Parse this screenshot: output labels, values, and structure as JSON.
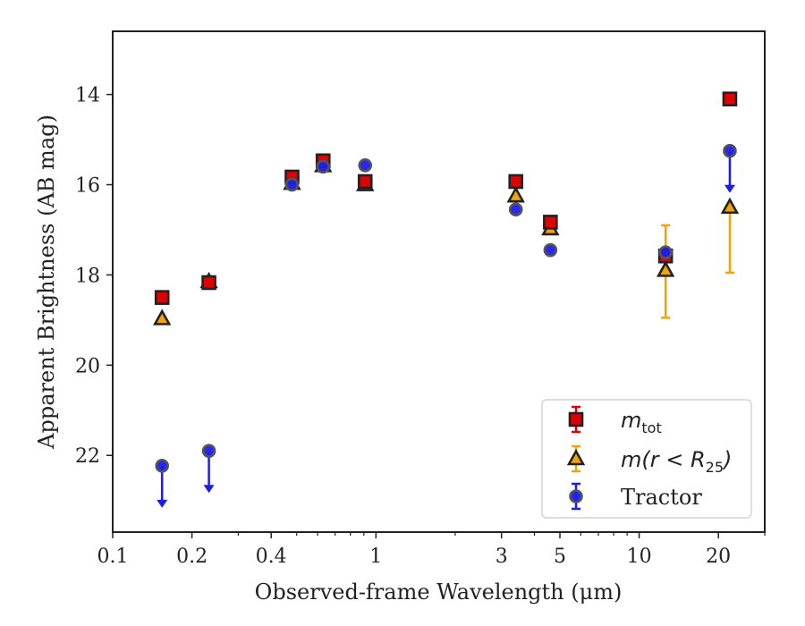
{
  "chart_data": {
    "type": "scatter",
    "xlabel": "Observed-frame Wavelength (μm)",
    "ylabel": "Apparent Brightness (AB mag)",
    "xscale": "log",
    "xlim": [
      0.1,
      30
    ],
    "ylim": [
      23.7,
      12.6
    ],
    "y_inverted": true,
    "grid": false,
    "legend_placement": "lower-right",
    "x_ticks": [
      {
        "value": 0.1,
        "label": "0.1"
      },
      {
        "value": 0.2,
        "label": "0.2"
      },
      {
        "value": 0.4,
        "label": "0.4"
      },
      {
        "value": 1,
        "label": "1"
      },
      {
        "value": 3,
        "label": "3"
      },
      {
        "value": 5,
        "label": "5"
      },
      {
        "value": 10,
        "label": "10"
      },
      {
        "value": 20,
        "label": "20"
      }
    ],
    "x_minor_ticks": [
      0.3,
      0.5,
      0.6,
      0.7,
      0.8,
      0.9,
      2,
      4,
      6,
      7,
      8,
      9,
      30
    ],
    "y_ticks": [
      {
        "value": 14,
        "label": "14"
      },
      {
        "value": 16,
        "label": "16"
      },
      {
        "value": 18,
        "label": "18"
      },
      {
        "value": 20,
        "label": "20"
      },
      {
        "value": 22,
        "label": "22"
      }
    ],
    "series": [
      {
        "name": "m_tot",
        "marker": "square",
        "color": "#e00000",
        "edge": "#222222",
        "points": [
          {
            "x": 0.154,
            "y": 18.5
          },
          {
            "x": 0.232,
            "y": 18.17
          },
          {
            "x": 0.48,
            "y": 15.83
          },
          {
            "x": 0.63,
            "y": 15.47
          },
          {
            "x": 0.91,
            "y": 15.93
          },
          {
            "x": 3.4,
            "y": 15.93
          },
          {
            "x": 4.6,
            "y": 16.83
          },
          {
            "x": 12.6,
            "y": 17.58
          },
          {
            "x": 22.1,
            "y": 14.1
          }
        ]
      },
      {
        "name": "m(r<R25)",
        "marker": "triangle",
        "color": "#f5a300",
        "edge": "#222222",
        "points": [
          {
            "x": 0.154,
            "y": 18.97
          },
          {
            "x": 0.232,
            "y": 18.15
          },
          {
            "x": 0.48,
            "y": 15.97
          },
          {
            "x": 0.63,
            "y": 15.58
          },
          {
            "x": 0.91,
            "y": 16.0
          },
          {
            "x": 3.4,
            "y": 16.25
          },
          {
            "x": 4.6,
            "y": 16.98
          },
          {
            "x": 12.6,
            "y": 17.9,
            "err": [
              16.9,
              18.95
            ]
          },
          {
            "x": 22.1,
            "y": 16.5,
            "err": [
              16.5,
              17.95
            ]
          }
        ]
      },
      {
        "name": "Tractor",
        "marker": "circle",
        "color": "#1c1cf0",
        "edge": "#555555",
        "points": [
          {
            "x": 0.154,
            "y": 22.23,
            "upper_limit": true
          },
          {
            "x": 0.232,
            "y": 21.9,
            "upper_limit": true
          },
          {
            "x": 0.48,
            "y": 16.0
          },
          {
            "x": 0.63,
            "y": 15.6
          },
          {
            "x": 0.91,
            "y": 15.57
          },
          {
            "x": 3.4,
            "y": 16.55
          },
          {
            "x": 4.6,
            "y": 17.45
          },
          {
            "x": 12.6,
            "y": 17.5
          },
          {
            "x": 22.1,
            "y": 15.25,
            "upper_limit": true
          }
        ]
      }
    ],
    "legend": [
      {
        "series": "m_tot",
        "base": "m",
        "sub": "tot"
      },
      {
        "series": "m(r<R25)",
        "base": "m(r < R",
        "sub": "25",
        "tail": ")"
      },
      {
        "series": "Tractor",
        "text": "Tractor"
      }
    ]
  }
}
